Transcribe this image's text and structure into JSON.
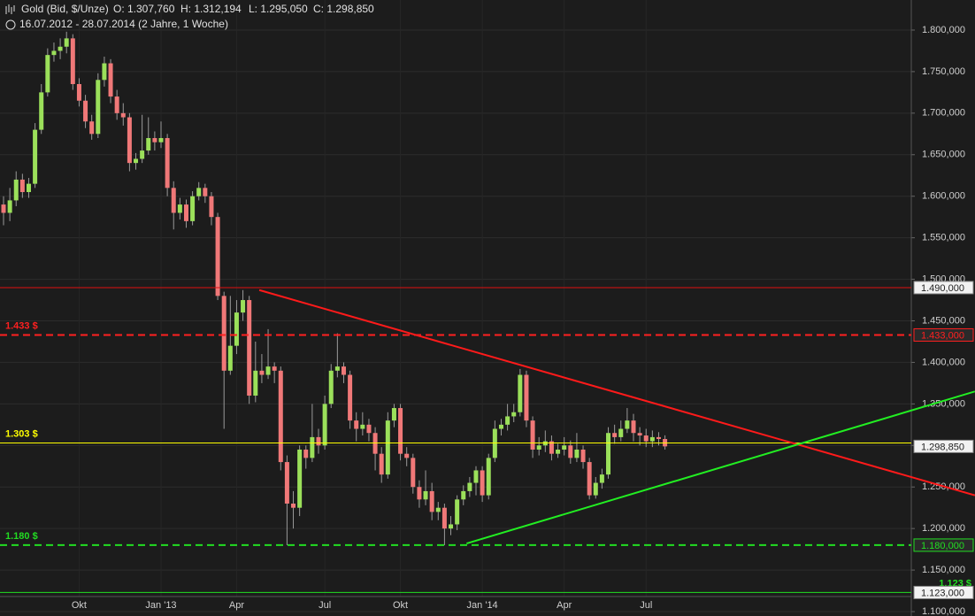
{
  "chart_data": {
    "type": "candlestick",
    "title": "Gold (Bid, $/Unze)",
    "ohlc_labels": [
      "O: 1.307,760",
      "H: 1.312,194",
      "L: 1.295,050",
      "C: 1.298,850"
    ],
    "subtitle": "16.07.2012 - 28.07.2014 (2 Jahre, 1 Woche)",
    "categories": [
      null,
      null,
      null,
      null,
      null,
      null,
      null,
      null,
      null,
      null,
      null,
      null,
      "Okt",
      null,
      null,
      null,
      null,
      null,
      null,
      null,
      null,
      null,
      null,
      null,
      null,
      "Jan '13",
      null,
      null,
      null,
      null,
      null,
      null,
      null,
      null,
      null,
      null,
      null,
      "Apr",
      null,
      null,
      null,
      null,
      null,
      null,
      null,
      null,
      null,
      null,
      null,
      null,
      null,
      "Jul",
      null,
      null,
      null,
      null,
      null,
      null,
      null,
      null,
      null,
      null,
      null,
      "Okt",
      null,
      null,
      null,
      null,
      null,
      null,
      null,
      null,
      null,
      null,
      null,
      null,
      "Jan '14",
      null,
      null,
      null,
      null,
      null,
      null,
      null,
      null,
      null,
      null,
      null,
      null,
      "Apr",
      null,
      null,
      null,
      null,
      null,
      null,
      null,
      null,
      null,
      null,
      null,
      null,
      "Jul",
      null,
      null,
      null
    ],
    "open": [
      1590,
      1580,
      1595,
      1620,
      1605,
      1615,
      1680,
      1725,
      1770,
      1775,
      1780,
      1790,
      1735,
      1715,
      1690,
      1675,
      1740,
      1760,
      1720,
      1700,
      1695,
      1640,
      1645,
      1655,
      1670,
      1665,
      1670,
      1610,
      1580,
      1590,
      1570,
      1600,
      1610,
      1600,
      1575,
      1480,
      1390,
      1420,
      1460,
      1475,
      1360,
      1390,
      1385,
      1395,
      1390,
      1280,
      1230,
      1225,
      1295,
      1285,
      1310,
      1300,
      1350,
      1390,
      1395,
      1385,
      1330,
      1320,
      1325,
      1315,
      1290,
      1265,
      1330,
      1345,
      1290,
      1285,
      1250,
      1235,
      1245,
      1220,
      1225,
      1200,
      1205,
      1235,
      1245,
      1255,
      1270,
      1240,
      1285,
      1320,
      1325,
      1335,
      1340,
      1385,
      1330,
      1295,
      1300,
      1305,
      1290,
      1295,
      1300,
      1285,
      1295,
      1280,
      1240,
      1255,
      1265,
      1315,
      1310,
      1320,
      1330,
      1315,
      1312,
      1305,
      1310,
      1307.76
    ],
    "high": [
      1600,
      1610,
      1630,
      1627,
      1622,
      1688,
      1735,
      1778,
      1785,
      1790,
      1798,
      1795,
      1742,
      1722,
      1698,
      1748,
      1768,
      1765,
      1728,
      1712,
      1700,
      1652,
      1698,
      1695,
      1678,
      1690,
      1675,
      1618,
      1598,
      1596,
      1606,
      1617,
      1615,
      1605,
      1580,
      1485,
      1480,
      1475,
      1487,
      1480,
      1425,
      1410,
      1440,
      1400,
      1395,
      1288,
      1245,
      1300,
      1300,
      1350,
      1320,
      1360,
      1398,
      1435,
      1400,
      1390,
      1340,
      1340,
      1332,
      1322,
      1298,
      1340,
      1350,
      1350,
      1298,
      1290,
      1258,
      1270,
      1255,
      1232,
      1230,
      1215,
      1240,
      1252,
      1262,
      1275,
      1275,
      1290,
      1330,
      1332,
      1350,
      1350,
      1392,
      1390,
      1335,
      1310,
      1318,
      1312,
      1302,
      1310,
      1306,
      1315,
      1300,
      1285,
      1262,
      1272,
      1322,
      1325,
      1330,
      1345,
      1338,
      1322,
      1320,
      1318,
      1316,
      1312.194
    ],
    "low": [
      1565,
      1570,
      1588,
      1598,
      1598,
      1610,
      1675,
      1720,
      1762,
      1765,
      1772,
      1728,
      1708,
      1682,
      1668,
      1670,
      1732,
      1712,
      1692,
      1685,
      1630,
      1632,
      1640,
      1650,
      1655,
      1658,
      1600,
      1560,
      1572,
      1562,
      1565,
      1595,
      1592,
      1565,
      1475,
      1320,
      1385,
      1410,
      1450,
      1350,
      1352,
      1375,
      1380,
      1375,
      1270,
      1180,
      1200,
      1215,
      1272,
      1280,
      1290,
      1295,
      1345,
      1382,
      1375,
      1320,
      1305,
      1312,
      1305,
      1270,
      1255,
      1260,
      1322,
      1282,
      1275,
      1242,
      1225,
      1228,
      1210,
      1210,
      1180,
      1192,
      1198,
      1228,
      1238,
      1240,
      1232,
      1235,
      1280,
      1312,
      1318,
      1328,
      1335,
      1322,
      1285,
      1288,
      1292,
      1282,
      1285,
      1288,
      1278,
      1280,
      1272,
      1235,
      1236,
      1248,
      1260,
      1302,
      1305,
      1315,
      1305,
      1300,
      1298,
      1298,
      1300,
      1295.05
    ],
    "close": [
      1580,
      1595,
      1620,
      1605,
      1615,
      1680,
      1725,
      1770,
      1775,
      1780,
      1790,
      1735,
      1715,
      1690,
      1675,
      1740,
      1760,
      1720,
      1700,
      1695,
      1640,
      1645,
      1655,
      1670,
      1665,
      1670,
      1610,
      1580,
      1590,
      1570,
      1600,
      1610,
      1600,
      1575,
      1480,
      1390,
      1420,
      1460,
      1475,
      1360,
      1390,
      1385,
      1395,
      1390,
      1280,
      1230,
      1225,
      1295,
      1285,
      1310,
      1300,
      1350,
      1390,
      1395,
      1385,
      1330,
      1320,
      1325,
      1315,
      1290,
      1265,
      1330,
      1345,
      1290,
      1285,
      1250,
      1235,
      1245,
      1220,
      1225,
      1200,
      1205,
      1235,
      1245,
      1255,
      1270,
      1240,
      1285,
      1320,
      1325,
      1335,
      1340,
      1385,
      1330,
      1295,
      1300,
      1305,
      1290,
      1295,
      1300,
      1285,
      1295,
      1280,
      1240,
      1255,
      1265,
      1315,
      1310,
      1320,
      1330,
      1315,
      1312,
      1305,
      1310,
      1307.76,
      1298.85
    ],
    "last_label": "1.298,850",
    "up_color": "#9be05a",
    "down_color": "#f07878",
    "ylim": [
      1094.7,
      1836.2
    ],
    "yticks": [
      {
        "value": 1100,
        "label": "1.100,000"
      },
      {
        "value": 1150,
        "label": "1.150,000"
      },
      {
        "value": 1200,
        "label": "1.200,000"
      },
      {
        "value": 1250,
        "label": "1.250,000"
      },
      {
        "value": 1300,
        "label": "1.300,000"
      },
      {
        "value": 1350,
        "label": "1.350,000"
      },
      {
        "value": 1400,
        "label": "1.400,000"
      },
      {
        "value": 1450,
        "label": "1.450,000"
      },
      {
        "value": 1500,
        "label": "1.500,000"
      },
      {
        "value": 1550,
        "label": "1.550,000"
      },
      {
        "value": 1600,
        "label": "1.600,000"
      },
      {
        "value": 1650,
        "label": "1.650,000"
      },
      {
        "value": 1700,
        "label": "1.700,000"
      },
      {
        "value": 1750,
        "label": "1.750,000"
      },
      {
        "value": 1800,
        "label": "1.800,000"
      }
    ],
    "grid": true,
    "levels": [
      {
        "value": 1490,
        "label": "1.490,000",
        "color": "#e01010",
        "style": "solid"
      },
      {
        "value": 1433,
        "label": "1.433,000",
        "tag": "1.433 $",
        "color": "#ff2020",
        "style": "dashed"
      },
      {
        "value": 1303,
        "tag": "1.303 $",
        "color": "#ffff00",
        "style": "solid"
      },
      {
        "value": 1180,
        "label": "1.180,000",
        "tag": "1.180 $",
        "color": "#22dd22",
        "style": "dashed"
      },
      {
        "value": 1123,
        "label": "1.123,000",
        "tag": "1.123 $",
        "color": "#22dd22",
        "style": "solid",
        "tag_side": "right"
      }
    ],
    "trendlines": [
      {
        "color": "#ff1a1a",
        "x": [
          40.6,
          154.2
        ],
        "y": [
          1487,
          1240
        ]
      },
      {
        "color": "#22ee22",
        "x": [
          73.5,
          154.2
        ],
        "y": [
          1182,
          1365
        ]
      }
    ]
  }
}
